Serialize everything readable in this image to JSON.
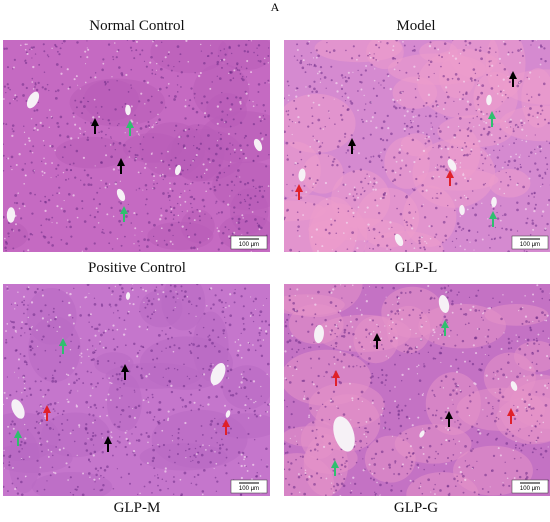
{
  "figure_label": "A",
  "label_rows": [
    [
      "Normal Control",
      "Model"
    ],
    [
      "Positive Control",
      "GLP-L"
    ],
    [
      "GLP-M",
      "GLP-G"
    ]
  ],
  "panels": [
    {
      "scale_bar": "100 μm"
    },
    {
      "scale_bar": "100 μm"
    },
    {
      "scale_bar": "100 μm"
    },
    {
      "scale_bar": "100 μm"
    }
  ]
}
